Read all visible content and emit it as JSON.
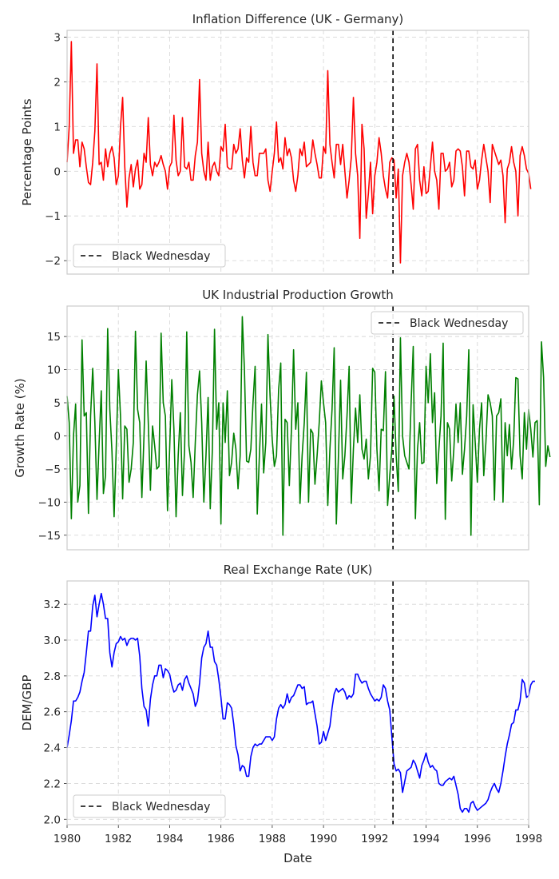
{
  "chart_data": [
    {
      "type": "line",
      "title": "Inflation Difference (UK - Germany)",
      "xlabel": "",
      "ylabel": "Percentage Points",
      "xlim": [
        1980,
        1998
      ],
      "ylim": [
        -2.3,
        3.15
      ],
      "yticks": [
        -2,
        -1,
        0,
        1,
        2,
        3
      ],
      "ytick_labels": [
        "−2",
        "−1",
        "0",
        "1",
        "2",
        "3"
      ],
      "grid": true,
      "legend": {
        "position": "bottom-left",
        "entries": [
          {
            "label": "Black Wednesday",
            "style": "dashed",
            "color": "#000000"
          }
        ]
      },
      "event": {
        "x": 1992.71,
        "label": "Black Wednesday"
      },
      "series": [
        {
          "color": "#ff0000",
          "x_start": 1980.0,
          "x_step": 0.08333,
          "values": [
            0.2,
            1.0,
            2.9,
            0.4,
            0.7,
            0.7,
            0.1,
            0.65,
            0.5,
            0.1,
            -0.25,
            -0.3,
            0.2,
            0.9,
            2.4,
            0.15,
            0.2,
            -0.2,
            0.5,
            0.1,
            0.4,
            0.55,
            0.3,
            -0.3,
            -0.1,
            1.0,
            1.65,
            0.1,
            -0.8,
            -0.15,
            0.15,
            -0.35,
            0.05,
            0.25,
            -0.4,
            -0.3,
            0.4,
            0.2,
            1.2,
            0.15,
            -0.1,
            0.2,
            0.1,
            0.2,
            0.35,
            0.15,
            0.0,
            -0.4,
            0.1,
            0.2,
            1.25,
            0.25,
            -0.1,
            0.0,
            1.2,
            0.1,
            0.05,
            0.2,
            -0.2,
            -0.2,
            0.35,
            0.65,
            2.05,
            0.4,
            0.0,
            -0.2,
            0.65,
            -0.2,
            0.1,
            0.2,
            0.0,
            -0.1,
            0.55,
            0.45,
            1.05,
            0.1,
            0.05,
            0.05,
            0.6,
            0.4,
            0.5,
            0.95,
            0.25,
            -0.15,
            0.3,
            0.2,
            1.0,
            0.2,
            -0.1,
            -0.1,
            0.4,
            0.4,
            0.4,
            0.5,
            -0.2,
            -0.45,
            0.0,
            0.4,
            1.1,
            0.2,
            0.3,
            0.05,
            0.75,
            0.35,
            0.5,
            0.3,
            -0.2,
            -0.45,
            -0.1,
            0.5,
            0.35,
            0.65,
            0.1,
            0.15,
            0.2,
            0.7,
            0.4,
            0.15,
            -0.15,
            -0.15,
            0.55,
            0.4,
            2.25,
            0.6,
            0.2,
            -0.15,
            0.6,
            0.6,
            0.15,
            0.6,
            0.0,
            -0.6,
            -0.2,
            0.3,
            1.65,
            0.4,
            -0.1,
            -1.5,
            1.05,
            0.5,
            -1.05,
            -0.5,
            0.2,
            -0.95,
            -0.1,
            0.2,
            0.75,
            0.4,
            -0.1,
            -0.4,
            -0.6,
            0.2,
            0.3,
            0.25,
            -0.6,
            0.05,
            -2.05,
            -0.1,
            0.2,
            0.4,
            0.2,
            -0.3,
            -0.85,
            0.5,
            0.6,
            -0.2,
            -0.55,
            0.1,
            -0.5,
            -0.45,
            0.1,
            0.65,
            0.0,
            -0.2,
            -0.85,
            0.4,
            0.4,
            0.0,
            0.05,
            0.2,
            -0.35,
            -0.2,
            0.45,
            0.5,
            0.45,
            0.1,
            -0.55,
            0.45,
            0.45,
            0.1,
            0.05,
            0.25,
            -0.4,
            -0.2,
            0.25,
            0.6,
            0.3,
            0.0,
            -0.7,
            0.6,
            0.45,
            0.3,
            0.15,
            0.25,
            -0.1,
            -1.15,
            0.05,
            0.2,
            0.55,
            0.2,
            0.0,
            -1.0,
            0.35,
            0.55,
            0.35,
            0.05,
            -0.05,
            -0.4
          ]
        }
      ]
    },
    {
      "type": "line",
      "title": "UK Industrial Production Growth",
      "xlabel": "",
      "ylabel": "Growth Rate (%)",
      "xlim": [
        1980,
        1998
      ],
      "ylim": [
        -17.2,
        19.6
      ],
      "yticks": [
        -15,
        -10,
        -5,
        0,
        5,
        10,
        15
      ],
      "ytick_labels": [
        "−15",
        "−10",
        "−5",
        "0",
        "5",
        "10",
        "15"
      ],
      "grid": true,
      "legend": {
        "position": "top-right",
        "entries": [
          {
            "label": "Black Wednesday",
            "style": "dashed",
            "color": "#000000"
          }
        ]
      },
      "event": {
        "x": 1992.71,
        "label": "Black Wednesday"
      },
      "series": [
        {
          "color": "#008000",
          "x_start": 1980.0,
          "x_step": 0.08333,
          "values": [
            6,
            2,
            -12.5,
            0,
            4.8,
            -10,
            -7.5,
            14.5,
            3,
            3.5,
            -11.7,
            3,
            10.2,
            2,
            -9.6,
            -1,
            6.8,
            -8.7,
            -6,
            16.2,
            4,
            -2.3,
            -12.2,
            -2,
            10,
            3,
            -9.5,
            1.5,
            1,
            -7,
            -5,
            -1,
            15.8,
            4,
            2,
            -9.3,
            0,
            11.3,
            2,
            -8.2,
            1.5,
            -1.5,
            -5,
            -4.6,
            15.5,
            5,
            3,
            -11.3,
            -2,
            8.5,
            1,
            -12.2,
            -3,
            3.5,
            -9,
            -2,
            15.7,
            -1.5,
            -4,
            -9.3,
            -1,
            6.2,
            9.8,
            2,
            -10,
            -3,
            5.8,
            -11,
            -2,
            16.1,
            1,
            5,
            -13.3,
            5,
            -1,
            6.8,
            -6,
            -4,
            0.4,
            -2,
            -8,
            -3,
            18,
            10,
            -3.8,
            -4,
            -2,
            5,
            10.5,
            -11.8,
            -3,
            4.8,
            -5.6,
            -1,
            15.3,
            6,
            -0.5,
            -4.6,
            -3,
            7,
            11,
            -15,
            2.5,
            2,
            -7.5,
            1,
            13,
            1,
            5,
            -10.2,
            -3,
            2,
            9.6,
            -10,
            1,
            0.4,
            -7.3,
            -3,
            2,
            8.3,
            5,
            2,
            -10.5,
            -2,
            4,
            13.3,
            -13.3,
            -3,
            8.4,
            -6.5,
            -3,
            3,
            10.5,
            -10.2,
            -2,
            4.2,
            -1,
            6.2,
            -2,
            -3.5,
            -0.5,
            -6.5,
            -3,
            10.2,
            9.6,
            -2,
            -8.3,
            1,
            0.8,
            9.7,
            -10.5,
            -6,
            -2,
            6,
            -3,
            -8.4,
            14.8,
            0,
            -3,
            -4,
            -5,
            5,
            13.5,
            -12.5,
            -2,
            2,
            -4.2,
            -4,
            10.5,
            5,
            12.4,
            2,
            6.5,
            -7.2,
            -2,
            3,
            14,
            -12.6,
            2,
            1,
            -6.8,
            -2,
            4.8,
            -1,
            5,
            -5.8,
            -2,
            3,
            13,
            -15,
            4.7,
            -1,
            -7,
            1,
            5,
            -6,
            -1,
            6.2,
            5,
            3,
            -9.7,
            3,
            3.5,
            5.6,
            -10,
            2,
            -3,
            1.7,
            -5,
            -0.6,
            8.8,
            8.6,
            -3,
            -6.5,
            3.5,
            -2,
            4,
            1,
            -3.2,
            2,
            2.3,
            -10.4,
            14.2,
            8.8,
            -4.6,
            -1.5,
            -3.2
          ]
        }
      ]
    },
    {
      "type": "line",
      "title": "Real Exchange Rate (UK)",
      "xlabel": "Date",
      "ylabel": "DEM/GBP",
      "xlim": [
        1980,
        1998
      ],
      "xticks": [
        1980,
        1982,
        1984,
        1986,
        1988,
        1990,
        1992,
        1994,
        1996,
        1998
      ],
      "xtick_labels": [
        "1980",
        "1982",
        "1984",
        "1986",
        "1988",
        "1990",
        "1992",
        "1994",
        "1996",
        "1998"
      ],
      "ylim": [
        1.97,
        3.33
      ],
      "yticks": [
        2.0,
        2.2,
        2.4,
        2.6,
        2.8,
        3.0,
        3.2
      ],
      "ytick_labels": [
        "2.0",
        "2.2",
        "2.4",
        "2.6",
        "2.8",
        "3.0",
        "3.2"
      ],
      "grid": true,
      "legend": {
        "position": "bottom-left",
        "entries": [
          {
            "label": "Black Wednesday",
            "style": "dashed",
            "color": "#000000"
          }
        ]
      },
      "event": {
        "x": 1992.71,
        "label": "Black Wednesday"
      },
      "series": [
        {
          "color": "#0000ff",
          "x_start": 1980.0,
          "x_step": 0.08333,
          "values": [
            2.4,
            2.47,
            2.55,
            2.66,
            2.66,
            2.68,
            2.71,
            2.77,
            2.82,
            2.93,
            3.05,
            3.05,
            3.19,
            3.25,
            3.13,
            3.2,
            3.26,
            3.2,
            3.12,
            3.12,
            2.93,
            2.85,
            2.93,
            2.98,
            2.99,
            3.02,
            3.0,
            3.01,
            2.97,
            3.0,
            3.01,
            3.01,
            3.0,
            3.01,
            2.91,
            2.73,
            2.63,
            2.61,
            2.52,
            2.67,
            2.75,
            2.8,
            2.8,
            2.86,
            2.86,
            2.79,
            2.84,
            2.83,
            2.81,
            2.75,
            2.71,
            2.72,
            2.75,
            2.76,
            2.72,
            2.78,
            2.8,
            2.76,
            2.73,
            2.7,
            2.63,
            2.66,
            2.76,
            2.9,
            2.96,
            2.98,
            3.05,
            2.96,
            2.96,
            2.88,
            2.86,
            2.78,
            2.68,
            2.56,
            2.56,
            2.65,
            2.64,
            2.62,
            2.53,
            2.41,
            2.36,
            2.27,
            2.3,
            2.29,
            2.24,
            2.24,
            2.35,
            2.4,
            2.42,
            2.41,
            2.42,
            2.42,
            2.44,
            2.46,
            2.46,
            2.46,
            2.44,
            2.46,
            2.56,
            2.62,
            2.64,
            2.62,
            2.64,
            2.7,
            2.65,
            2.68,
            2.69,
            2.72,
            2.75,
            2.75,
            2.73,
            2.74,
            2.64,
            2.65,
            2.65,
            2.66,
            2.59,
            2.52,
            2.42,
            2.43,
            2.49,
            2.44,
            2.48,
            2.52,
            2.62,
            2.7,
            2.73,
            2.71,
            2.72,
            2.73,
            2.71,
            2.67,
            2.69,
            2.68,
            2.7,
            2.81,
            2.81,
            2.78,
            2.76,
            2.77,
            2.77,
            2.73,
            2.7,
            2.68,
            2.66,
            2.67,
            2.66,
            2.68,
            2.75,
            2.73,
            2.66,
            2.61,
            2.46,
            2.31,
            2.27,
            2.28,
            2.26,
            2.15,
            2.21,
            2.27,
            2.28,
            2.29,
            2.33,
            2.31,
            2.27,
            2.23,
            2.3,
            2.33,
            2.37,
            2.32,
            2.29,
            2.3,
            2.28,
            2.27,
            2.2,
            2.19,
            2.19,
            2.21,
            2.22,
            2.23,
            2.22,
            2.24,
            2.19,
            2.14,
            2.06,
            2.04,
            2.06,
            2.06,
            2.04,
            2.09,
            2.1,
            2.07,
            2.05,
            2.06,
            2.07,
            2.08,
            2.09,
            2.11,
            2.15,
            2.18,
            2.2,
            2.17,
            2.15,
            2.2,
            2.27,
            2.35,
            2.42,
            2.47,
            2.53,
            2.54,
            2.61,
            2.61,
            2.66,
            2.78,
            2.76,
            2.68,
            2.69,
            2.75,
            2.77,
            2.77
          ]
        }
      ]
    }
  ]
}
